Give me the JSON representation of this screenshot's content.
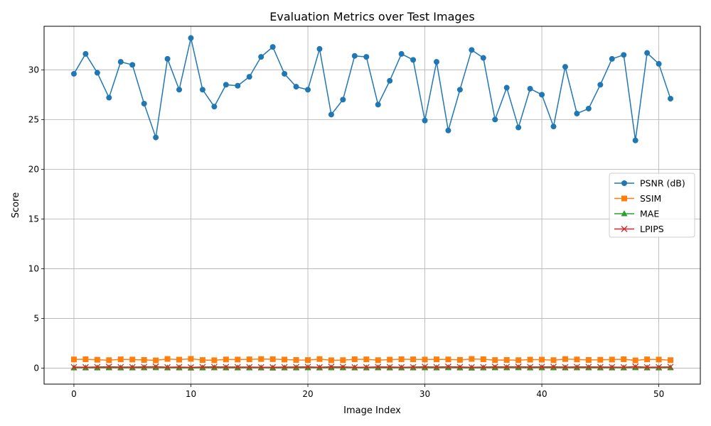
{
  "chart_data": {
    "type": "line",
    "title": "Evaluation Metrics over Test Images",
    "xlabel": "Image Index",
    "ylabel": "Score",
    "xlim": [
      -2.55,
      53.55
    ],
    "ylim": [
      -1.61,
      34.38
    ],
    "xticks": [
      0,
      10,
      20,
      30,
      40,
      50
    ],
    "yticks": [
      0,
      5,
      10,
      15,
      20,
      25,
      30
    ],
    "grid": true,
    "legend_position": "center-right",
    "x": [
      0,
      1,
      2,
      3,
      4,
      5,
      6,
      7,
      8,
      9,
      10,
      11,
      12,
      13,
      14,
      15,
      16,
      17,
      18,
      19,
      20,
      21,
      22,
      23,
      24,
      25,
      26,
      27,
      28,
      29,
      30,
      31,
      32,
      33,
      34,
      35,
      36,
      37,
      38,
      39,
      40,
      41,
      42,
      43,
      44,
      45,
      46,
      47,
      48,
      49,
      50,
      51
    ],
    "series": [
      {
        "name": "PSNR (dB)",
        "color": "#1f77b4",
        "marker": "circle",
        "values": [
          29.6,
          31.6,
          29.7,
          27.2,
          30.8,
          30.5,
          26.6,
          23.2,
          31.1,
          28.0,
          33.2,
          28.0,
          26.3,
          28.5,
          28.4,
          29.3,
          31.3,
          32.3,
          29.6,
          28.3,
          28.0,
          32.1,
          25.5,
          27.0,
          31.4,
          31.3,
          26.5,
          28.9,
          31.6,
          31.0,
          24.9,
          30.8,
          23.9,
          28.0,
          32.0,
          31.2,
          25.0,
          28.2,
          24.2,
          28.1,
          27.5,
          24.3,
          30.3,
          25.6,
          26.1,
          28.5,
          31.1,
          31.5,
          22.9,
          31.7,
          30.6,
          27.1
        ]
      },
      {
        "name": "SSIM",
        "color": "#ff7f0e",
        "marker": "square",
        "values": [
          0.87,
          0.89,
          0.84,
          0.8,
          0.88,
          0.86,
          0.82,
          0.78,
          0.92,
          0.85,
          0.93,
          0.81,
          0.79,
          0.87,
          0.86,
          0.88,
          0.91,
          0.9,
          0.86,
          0.82,
          0.81,
          0.91,
          0.79,
          0.8,
          0.89,
          0.88,
          0.8,
          0.85,
          0.89,
          0.88,
          0.86,
          0.88,
          0.87,
          0.83,
          0.92,
          0.89,
          0.81,
          0.82,
          0.8,
          0.85,
          0.85,
          0.8,
          0.91,
          0.87,
          0.82,
          0.84,
          0.86,
          0.89,
          0.78,
          0.88,
          0.86,
          0.8
        ]
      },
      {
        "name": "MAE",
        "color": "#2ca02c",
        "marker": "triangle",
        "values": [
          0.02,
          0.02,
          0.02,
          0.03,
          0.02,
          0.02,
          0.03,
          0.04,
          0.02,
          0.02,
          0.01,
          0.02,
          0.03,
          0.02,
          0.02,
          0.02,
          0.02,
          0.01,
          0.02,
          0.02,
          0.03,
          0.02,
          0.03,
          0.03,
          0.02,
          0.02,
          0.03,
          0.02,
          0.02,
          0.02,
          0.03,
          0.02,
          0.04,
          0.02,
          0.01,
          0.02,
          0.03,
          0.03,
          0.04,
          0.02,
          0.03,
          0.03,
          0.02,
          0.03,
          0.03,
          0.02,
          0.02,
          0.02,
          0.04,
          0.02,
          0.02,
          0.03
        ]
      },
      {
        "name": "LPIPS",
        "color": "#d62728",
        "marker": "x",
        "values": [
          0.1,
          0.09,
          0.11,
          0.13,
          0.1,
          0.1,
          0.12,
          0.15,
          0.09,
          0.11,
          0.08,
          0.11,
          0.12,
          0.11,
          0.1,
          0.1,
          0.09,
          0.09,
          0.1,
          0.11,
          0.12,
          0.09,
          0.13,
          0.12,
          0.09,
          0.09,
          0.12,
          0.11,
          0.09,
          0.1,
          0.13,
          0.1,
          0.14,
          0.11,
          0.09,
          0.1,
          0.13,
          0.12,
          0.14,
          0.11,
          0.12,
          0.13,
          0.1,
          0.12,
          0.12,
          0.11,
          0.1,
          0.09,
          0.15,
          0.09,
          0.1,
          0.12
        ]
      }
    ]
  }
}
